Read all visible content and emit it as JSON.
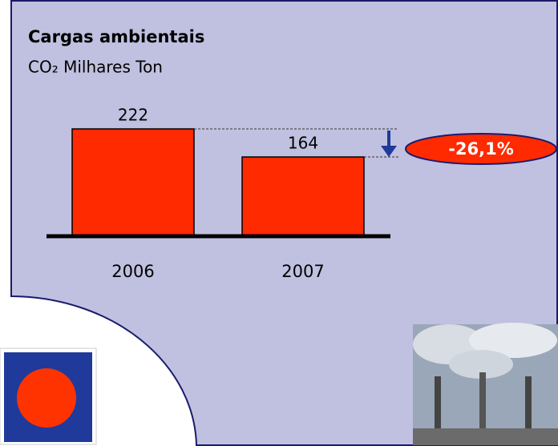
{
  "chart_data": {
    "type": "bar",
    "title": "Cargas ambientais",
    "subtitle": "CO₂ Milhares Ton",
    "categories": [
      "2006",
      "2007"
    ],
    "values": [
      222,
      164
    ],
    "color": "#ff2a00",
    "annotation": "-26,1%"
  }
}
